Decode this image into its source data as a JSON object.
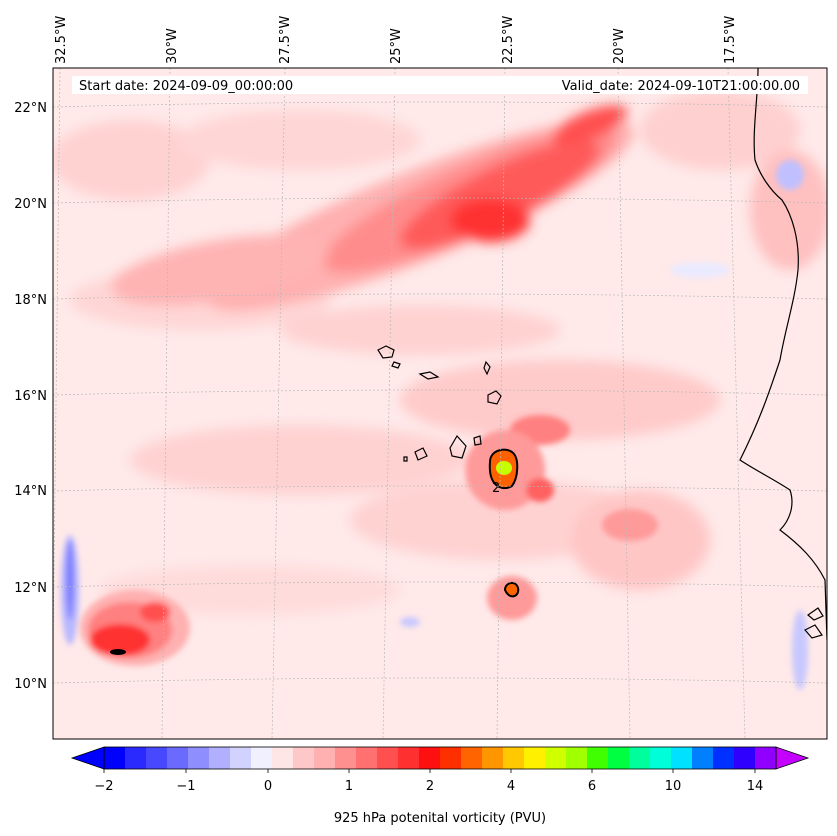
{
  "map": {
    "start_date": "Start date: 2024-09-09_00:00:00",
    "valid_date": "Valid_date: 2024-09-10T21:00:00.00",
    "lon_labels": [
      "32.5°W",
      "30°W",
      "27.5°W",
      "25°W",
      "22.5°W",
      "20°W",
      "17.5°W"
    ],
    "lat_labels": [
      "22°N",
      "20°N",
      "18°N",
      "16°N",
      "14°N",
      "12°N",
      "10°N"
    ],
    "contour_label": "2"
  },
  "colorbar": {
    "label": "925 hPa potenital vorticity (PVU)",
    "ticks": [
      "−2",
      "−1",
      "0",
      "1",
      "2",
      "4",
      "6",
      "10",
      "14"
    ],
    "colors": [
      "#0000ff",
      "#2a2aff",
      "#4848ff",
      "#6a6aff",
      "#8e8eff",
      "#b0b0ff",
      "#d2d2ff",
      "#f0f0ff",
      "#ffe6e6",
      "#ffc8c8",
      "#ffb0b0",
      "#ff9090",
      "#ff7070",
      "#ff5050",
      "#ff3030",
      "#ff1010",
      "#ff3000",
      "#ff6400",
      "#ff9600",
      "#ffc800",
      "#fff000",
      "#d0ff00",
      "#a0ff00",
      "#40ff00",
      "#00ff40",
      "#00ff9c",
      "#00ffd8",
      "#00e0ff",
      "#0080ff",
      "#0030ff",
      "#3000ff",
      "#9000ff"
    ]
  },
  "colors": {
    "frame": "#000000",
    "coast": "#000000",
    "background": "#ffe9e9"
  }
}
